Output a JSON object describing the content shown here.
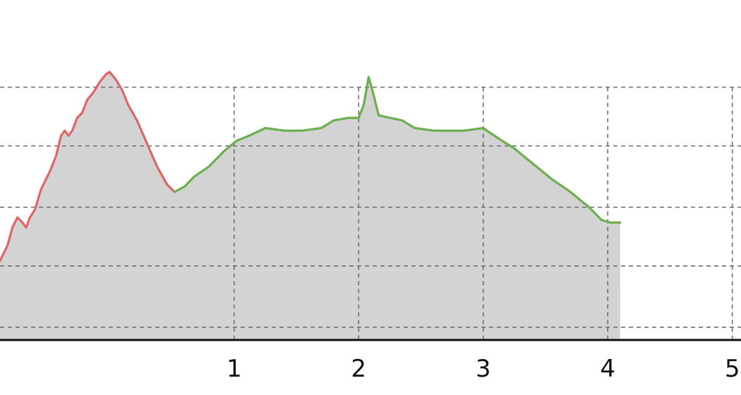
{
  "chart_data": {
    "type": "area",
    "title": "",
    "xlabel": "",
    "ylabel": "",
    "xlim": [
      -0.88,
      5.07
    ],
    "ylim": [
      0,
      100
    ],
    "x_ticks": [
      "1",
      "2",
      "3",
      "4",
      "5"
    ],
    "y_gridlines": [
      5,
      29,
      52,
      76,
      99
    ],
    "grid": true,
    "fill_color": "#d3d3d3",
    "series": [
      {
        "color": "#e06666",
        "points": [
          [
            -0.88,
            31
          ],
          [
            -0.82,
            37
          ],
          [
            -0.78,
            44
          ],
          [
            -0.74,
            48
          ],
          [
            -0.7,
            46
          ],
          [
            -0.67,
            44
          ],
          [
            -0.64,
            48
          ],
          [
            -0.6,
            51
          ],
          [
            -0.55,
            59
          ],
          [
            -0.48,
            66
          ],
          [
            -0.43,
            72
          ],
          [
            -0.39,
            80
          ],
          [
            -0.36,
            82
          ],
          [
            -0.33,
            80
          ],
          [
            -0.3,
            82
          ],
          [
            -0.26,
            87
          ],
          [
            -0.22,
            89
          ],
          [
            -0.18,
            94
          ],
          [
            -0.13,
            97
          ],
          [
            -0.08,
            101
          ],
          [
            -0.03,
            104
          ],
          [
            0.0,
            105
          ],
          [
            0.05,
            102
          ],
          [
            0.1,
            98
          ],
          [
            0.15,
            92
          ],
          [
            0.22,
            86
          ],
          [
            0.3,
            77
          ],
          [
            0.38,
            68
          ],
          [
            0.46,
            61
          ],
          [
            0.52,
            58
          ]
        ]
      },
      {
        "color": "#6ab04c",
        "points": [
          [
            0.52,
            58
          ],
          [
            0.6,
            60
          ],
          [
            0.68,
            64
          ],
          [
            0.8,
            68
          ],
          [
            0.92,
            74
          ],
          [
            1.02,
            78
          ],
          [
            1.12,
            80
          ],
          [
            1.25,
            83
          ],
          [
            1.4,
            82
          ],
          [
            1.55,
            82
          ],
          [
            1.7,
            83
          ],
          [
            1.8,
            86
          ],
          [
            1.92,
            87
          ],
          [
            2.0,
            87
          ],
          [
            2.04,
            92
          ],
          [
            2.08,
            103
          ],
          [
            2.12,
            96
          ],
          [
            2.16,
            88
          ],
          [
            2.25,
            87
          ],
          [
            2.35,
            86
          ],
          [
            2.45,
            83
          ],
          [
            2.6,
            82
          ],
          [
            2.75,
            82
          ],
          [
            2.85,
            82
          ],
          [
            3.0,
            83
          ],
          [
            3.12,
            79
          ],
          [
            3.25,
            75
          ],
          [
            3.4,
            69
          ],
          [
            3.55,
            63
          ],
          [
            3.7,
            58
          ],
          [
            3.85,
            52
          ],
          [
            3.95,
            47
          ],
          [
            4.02,
            46
          ],
          [
            4.1,
            46
          ]
        ]
      }
    ]
  }
}
